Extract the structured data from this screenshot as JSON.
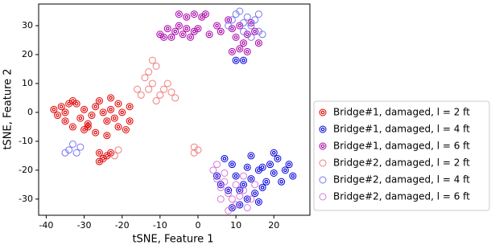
{
  "chart_data": {
    "type": "scatter",
    "xlabel": "tSNE, Feature 1",
    "ylabel": "tSNE, Feature 2",
    "xlim": [
      -42,
      29.5
    ],
    "ylim": [
      -35.6,
      37.5
    ],
    "xticks": [
      -40,
      -30,
      -20,
      -10,
      0,
      10,
      20
    ],
    "yticks": [
      -30,
      -20,
      -10,
      0,
      10,
      20,
      30
    ],
    "series": [
      {
        "name": "Bridge#1, damaged, l = 2 ft",
        "color": "#e00000",
        "marker": "ringed",
        "x": [
          -38,
          -37,
          -36,
          -35,
          -34,
          -33,
          -32,
          -31,
          -30,
          -29,
          -28,
          -27,
          -26,
          -25,
          -24,
          -23,
          -22,
          -21,
          -20,
          -27,
          -24,
          -21,
          -19,
          -18,
          -18,
          -33,
          -30,
          -35,
          -26,
          -25,
          -24,
          -26,
          -23,
          -29,
          -23
        ],
        "values": [
          1,
          -1,
          2,
          0,
          3,
          4,
          3,
          -2,
          1,
          -4,
          -1,
          2,
          4,
          0,
          -3,
          1,
          -2,
          3,
          0,
          -7,
          -8,
          -5,
          -6,
          -3,
          2,
          -5,
          -6,
          -3,
          -14,
          -16,
          -15,
          -17,
          -14,
          -5,
          5
        ]
      },
      {
        "name": "Bridge#1, damaged, l = 4 ft",
        "color": "#0000dd",
        "marker": "ringed",
        "x": [
          10,
          12,
          7,
          9,
          10,
          12,
          14,
          16,
          17,
          15,
          13,
          11,
          9,
          8,
          6,
          5,
          19,
          20,
          21,
          22,
          23,
          24,
          25,
          18,
          14,
          13,
          11,
          16,
          20,
          17
        ],
        "values": [
          18,
          18,
          -16,
          -18,
          -22,
          -25,
          -23,
          -20,
          -26,
          -28,
          -30,
          -32,
          -33,
          -27,
          -25,
          -22,
          -18,
          -21,
          -16,
          -24,
          -20,
          -18,
          -22,
          -24,
          -15,
          -19,
          -27,
          -31,
          -14,
          -19
        ]
      },
      {
        "name": "Bridge#1, damaged, l = 6 ft",
        "color": "#a800a8",
        "marker": "ringed",
        "x": [
          -10,
          -9,
          -8,
          -7,
          -6,
          -5,
          -4,
          -3,
          -2,
          -1,
          0,
          -5,
          -3,
          -1,
          1,
          2,
          5,
          6,
          8,
          9,
          10,
          11,
          12,
          13,
          14,
          15,
          16,
          9,
          11,
          13,
          3
        ],
        "values": [
          27,
          26,
          29,
          26,
          28,
          30,
          27,
          29,
          26,
          28,
          29,
          34,
          33,
          34,
          33,
          34,
          30,
          28,
          32,
          29,
          26,
          30,
          24,
          27,
          31,
          28,
          24,
          21,
          22,
          21,
          27
        ]
      },
      {
        "name": "Bridge#2, damaged, l = 2 ft",
        "color": "#f08080",
        "marker": "hollow",
        "x": [
          -12,
          -11,
          -13,
          -14,
          -12,
          -13,
          -15,
          -10,
          -9,
          -8,
          -7,
          -6,
          -11,
          -1,
          0,
          -1,
          -21,
          -22,
          -16
        ],
        "values": [
          18,
          16,
          14,
          12,
          10,
          8,
          6,
          6,
          8,
          10,
          7,
          5,
          4,
          -12,
          -13,
          -14,
          -13,
          -15,
          8
        ]
      },
      {
        "name": "Bridge#2, damaged, l = 4 ft",
        "color": "#7878f0",
        "marker": "hollow",
        "x": [
          -34,
          -33,
          -32,
          -31,
          -35,
          10,
          11,
          12,
          13,
          14,
          15,
          16,
          17,
          9,
          8,
          14,
          12,
          16
        ],
        "values": [
          -13,
          -11,
          -14,
          -12,
          -14,
          34,
          35,
          31,
          33,
          30,
          32,
          28,
          27,
          32,
          30,
          26,
          28,
          34
        ]
      },
      {
        "name": "Bridge#2, damaged, l = 6 ft",
        "color": "#d878d8",
        "marker": "hollow",
        "x": [
          4,
          5,
          6,
          7,
          8,
          9,
          10,
          11,
          12,
          13,
          14,
          15,
          8,
          6,
          10,
          12,
          7,
          5
        ],
        "values": [
          -20,
          -23,
          -26,
          -24,
          -28,
          -30,
          -32,
          -29,
          -27,
          -33,
          -30,
          -25,
          -34,
          -30,
          -25,
          -22,
          -21,
          -18
        ]
      }
    ]
  }
}
